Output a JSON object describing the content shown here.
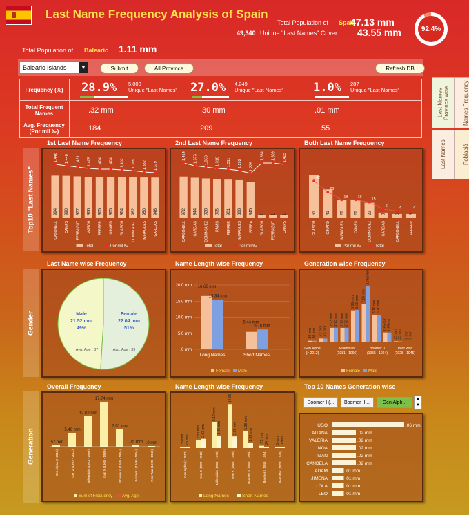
{
  "header": {
    "title": "Last Name Frequency Analysis of Spain",
    "pop_label": "Total Population of",
    "pop_country": "Spain",
    "pop_value": "47.13 mm",
    "unique_count": "49,340",
    "unique_label": "Unique \"Last Names\" Cover",
    "cover_value": "43.55 mm",
    "ring_value": "92.4%",
    "ring_fraction": 0.924
  },
  "region": {
    "label": "Total Population of",
    "name": "Balearic",
    "value": "1.11 mm"
  },
  "controls": {
    "select_value": "Balearic Islands",
    "submit_label": "Submit",
    "all_province_label": "All Province",
    "refresh_label": "Refresh DB"
  },
  "stats": {
    "row1_label": "Frequency (%)",
    "row2_label": "Total Frequent Names",
    "row3_label": "Avg. Frequency (Por mil ‰)",
    "cols": [
      {
        "pct": "28.9%",
        "count": "5,000",
        "unique": "Unique \"Last Names\"",
        "total": ".32 mm",
        "avg": "184"
      },
      {
        "pct": "27.0%",
        "count": "4,249",
        "unique": "Unique \"Last Names\"",
        "total": ".30 mm",
        "avg": "209"
      },
      {
        "pct": "1.0%",
        "count": "287",
        "unique": "Unique \"Last Names\"",
        "total": ".01 mm",
        "avg": "55"
      }
    ]
  },
  "side_tabs": {
    "t1": "Last Names Province wise",
    "t2": "Names Frequency",
    "t3": "Last Names",
    "t4": "Població"
  },
  "sections": {
    "top10": "Top10 \"Last Names\"",
    "gender": "Gender",
    "generation": "Generation"
  },
  "charts": {
    "c1": {
      "title": "1st Last Name Frequency",
      "names": [
        "CABONELL",
        "CAMPS",
        "FERRAGUT",
        "MARCH",
        "FERRER",
        "GINARD",
        "GUASCH",
        "DOMINGUEZ",
        "MIRAGUES",
        "GARCIAS"
      ],
      "values": [
        994,
        990,
        977,
        966,
        965,
        965,
        964,
        962,
        950,
        948
      ],
      "labels": [
        "1,446",
        "1,440",
        "1,421",
        "1,405",
        "1,404",
        "1,404",
        "1,402",
        "1,399",
        "1,382",
        "1,379"
      ],
      "legend": [
        "Total",
        "Por mil ‰"
      ]
    },
    "c2": {
      "title": "2nd Last Name Frequency",
      "names": [
        "CARBONELL",
        "GARCIAS",
        "DOMINGUEZ",
        "RAMIS",
        "FERRER",
        "MIRAGUES",
        "SERRA",
        "GUASCH",
        "FERRAGUT",
        "CAMPS"
      ],
      "values": [
        972,
        944,
        928,
        905,
        901,
        888,
        845,
        1,
        1,
        1
      ],
      "labels": [
        "1,414",
        "1,373",
        "1,350",
        "1,316",
        "1,311",
        "1,292",
        "1,229",
        "1,534",
        "1,509",
        "1,405"
      ],
      "legend": [
        "Total",
        "Por mil ‰"
      ]
    },
    "c3": {
      "title": "Both Last Name Frequency",
      "names": [
        "GUASCH",
        "GINARD",
        "MIRAGUES",
        "CAMPS",
        "DOMINGUEZ",
        "GARCIAS",
        "CARBONELL",
        "FERRER"
      ],
      "values": [
        61,
        41,
        26,
        26,
        22,
        8,
        6,
        6
      ],
      "labels": [
        "42",
        "28",
        "18",
        "18",
        "15",
        "6",
        "4",
        "4"
      ],
      "legend": [
        "Por mil ‰",
        "Total"
      ]
    },
    "c4": {
      "title": "Last Name wise Frequency",
      "male": "Male, 21.52 mm, 49%",
      "female": "Female, 22.04 mm, 51%",
      "male_age": "Avg. Age : 37",
      "female_age": "Avg. Age : 39",
      "male_fraction": 0.49
    },
    "c5": {
      "title": "Name Length wise Frequency",
      "ticks": [
        "20.0 mm",
        "15.0 mm",
        "10.0 mm",
        "5.0 mm",
        ".0 mm"
      ],
      "categories": [
        "Long Names",
        "Short Names"
      ],
      "female": [
        16.6,
        5.44
      ],
      "male": [
        15.34,
        6.18
      ],
      "female_labels": [
        "16.60 mm",
        "5.44 mm"
      ],
      "male_labels": [
        "15.34 mm",
        "6.18 mm"
      ],
      "legend": [
        "Female",
        "Male"
      ]
    },
    "c6": {
      "title": "Generation wise Frequency",
      "categories": [
        "Gen Alpha (> 2012)",
        "Millennials (1981 - 1996)",
        "Boomer II (1955 - 1964)",
        "Post War (1928 - 1945)"
      ],
      "female": [
        0.3,
        0.73,
        2.73,
        2.72,
        5.99,
        7.14,
        5.16,
        1.85,
        0.21,
        0.0
      ],
      "male": [
        0.3,
        0.73,
        2.73,
        2.72,
        6.09,
        10.6,
        5.16,
        1.85,
        0.21,
        0.0
      ],
      "flabels": [
        ".30 mm",
        ".73 mm",
        "2.73 mm",
        "2.72 mm",
        "5.99 mm",
        "7.14 mm",
        "5.16 mm",
        "1.85 mm",
        ".21 mm",
        ".0 mm"
      ],
      "mlabels": [
        ".30 mm",
        ".73 mm",
        "2.73 mm",
        "2.72 mm",
        "6.09 mm",
        "10.60 mm",
        "5.16 mm",
        "1.85 mm",
        ".21 mm",
        ".0 mm"
      ],
      "legend": [
        "Female",
        "Male"
      ]
    },
    "c7": {
      "title": "Overall Frequency",
      "categories": [
        "Gen Alpha (> 2012)",
        "Gen Z (1997 - 2012)",
        "Millennials (1981 - 1996)",
        "Gen X (1965 - 1980)",
        "Boomer II (1955 - 1964)",
        "Boomer I (1946 - 1954)",
        "Post War (1928 - 1945)"
      ],
      "values": [
        0.57,
        5.46,
        12.02,
        17.74,
        7.01,
        0.75,
        0.0
      ],
      "labels": [
        ".57 mm",
        "5.46 mm",
        "12.02 mm",
        "17.74 mm",
        "7.01 mm",
        ".75 mm",
        ".0 mm"
      ],
      "legend": [
        "Sum of Frequency",
        "Avg. Age"
      ]
    },
    "c8": {
      "title": "Name Length wise Frequency",
      "categories": [
        "Gen Alpha (> 2012)",
        "Gen Z (1997 - 2012)",
        "Millennials (1981 - 1996)",
        "Gen X (1965 - 1980)",
        "Boomer II (1955 - 1964)",
        "Boomer I (1946 - 1954)",
        "Post War (1928 - 1945)"
      ],
      "long": [
        0.39,
        2.53,
        8.17,
        14.06,
        5.38,
        0.75,
        0.0
      ],
      "short": [
        0.18,
        2.93,
        3.85,
        3.69,
        1.63,
        0.04,
        0.0
      ],
      "long_labels": [
        ".39 mm",
        "2.53 mm",
        "8.17 mm",
        "14.06 mm",
        "5.38 mm",
        ".75 mm",
        ".0 mm"
      ],
      "short_labels": [
        ".18 mm",
        "2.93 mm",
        "3.85 mm",
        "3.69 mm",
        "1.63 mm",
        ".04 mm",
        ".0 mm"
      ],
      "legend": [
        "Long Names",
        "Short Names"
      ]
    },
    "c9": {
      "title": "Top 10 Names Generation wise",
      "buttons": [
        "Boomer I (...",
        "Boomer II ...",
        "Gen Alph..."
      ],
      "names": [
        "HUGO",
        "AITANA",
        "VALERIA",
        "NOA",
        "IZAN",
        "CANDELA",
        "ADAM",
        "JIMENA",
        "LOLA",
        "LEO"
      ],
      "values": [
        0.06,
        0.02,
        0.02,
        0.02,
        0.02,
        0.02,
        0.01,
        0.01,
        0.01,
        0.01
      ],
      "labels": [
        ".06 mm",
        ".02 mm",
        ".02 mm",
        ".02 mm",
        ".02 mm",
        ".02 mm",
        ".01 mm",
        ".01 mm",
        ".01 mm",
        ".01 mm"
      ]
    }
  },
  "colors": {
    "bar": "#f5c09a",
    "dot": "#ff2222",
    "blue": "#7fa0e0",
    "pie_male": "#f4f7c8",
    "pie_female": "#e4f0dc",
    "gen_bar": "#fbefa8",
    "accent_green": "#7cc04a"
  }
}
